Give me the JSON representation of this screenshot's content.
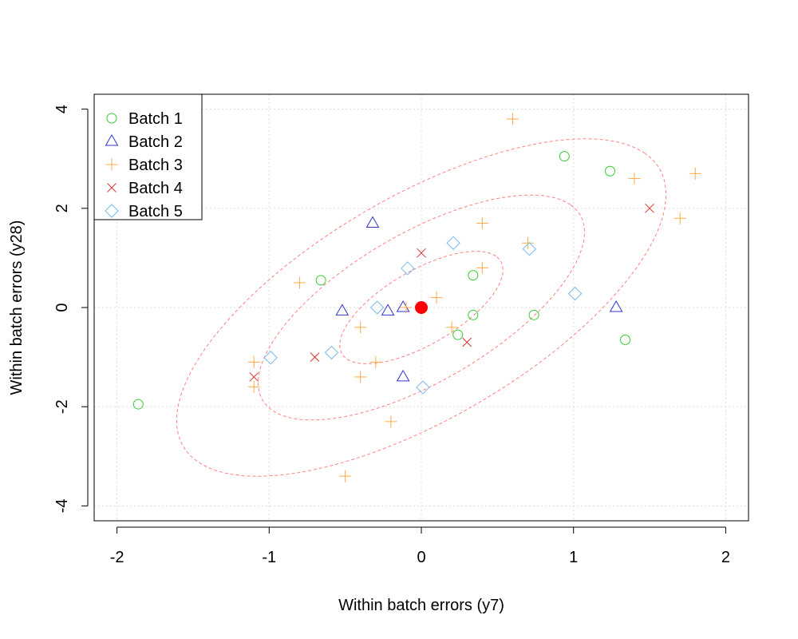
{
  "chart_data": {
    "type": "scatter",
    "title": "",
    "xlabel": "Within batch errors (y7)",
    "ylabel": "Within batch errors (y28)",
    "xlim": [
      -2.15,
      2.15
    ],
    "ylim": [
      -4.3,
      4.3
    ],
    "xticks": [
      -2,
      -1,
      0,
      1,
      2
    ],
    "xtick_labels": [
      "-2",
      "-1",
      "0",
      "1",
      "2"
    ],
    "yticks": [
      -4,
      -2,
      0,
      2,
      4
    ],
    "ytick_labels": [
      "-4",
      "-2",
      "0",
      "2",
      "4"
    ],
    "grid": true,
    "legend_position": "top-left",
    "center_point": {
      "x": 0,
      "y": 0,
      "color": "#ff0000"
    },
    "ellipses": [
      {
        "cx": 0,
        "cy": 0,
        "sdx": 0.536,
        "sdy": 1.134,
        "r": 0.67,
        "k": 1.0
      },
      {
        "cx": 0,
        "cy": 0,
        "sdx": 0.536,
        "sdy": 1.134,
        "r": 0.67,
        "k": 2.0
      },
      {
        "cx": 0,
        "cy": 0,
        "sdx": 0.536,
        "sdy": 1.134,
        "r": 0.67,
        "k": 3.0
      }
    ],
    "series": [
      {
        "name": "Batch 1",
        "marker": "circle",
        "color": "#33cc33",
        "points": [
          [
            0.94,
            3.05
          ],
          [
            1.24,
            2.75
          ],
          [
            -0.66,
            0.55
          ],
          [
            0.34,
            0.65
          ],
          [
            0.34,
            -0.15
          ],
          [
            0.74,
            -0.15
          ],
          [
            0.24,
            -0.55
          ],
          [
            1.34,
            -0.65
          ],
          [
            -1.86,
            -1.95
          ]
        ]
      },
      {
        "name": "Batch 2",
        "marker": "triangle",
        "color": "#3333cc",
        "points": [
          [
            -0.32,
            1.7
          ],
          [
            -0.12,
            0.0
          ],
          [
            -0.22,
            -0.07
          ],
          [
            -0.52,
            -0.07
          ],
          [
            1.28,
            0.0
          ],
          [
            -0.12,
            -1.4
          ]
        ]
      },
      {
        "name": "Batch 3",
        "marker": "plus",
        "color": "#ffaa44",
        "points": [
          [
            0.6,
            3.8
          ],
          [
            1.4,
            2.6
          ],
          [
            1.8,
            2.7
          ],
          [
            1.7,
            1.8
          ],
          [
            0.4,
            1.7
          ],
          [
            0.7,
            1.3
          ],
          [
            0.4,
            0.8
          ],
          [
            -0.8,
            0.5
          ],
          [
            0.1,
            0.2
          ],
          [
            -0.1,
            0.0
          ],
          [
            -0.4,
            -0.4
          ],
          [
            0.2,
            -0.4
          ],
          [
            -0.3,
            -1.1
          ],
          [
            -1.1,
            -1.1
          ],
          [
            -0.4,
            -1.4
          ],
          [
            -1.1,
            -1.6
          ],
          [
            -0.2,
            -2.3
          ],
          [
            -0.5,
            -3.4
          ]
        ]
      },
      {
        "name": "Batch 4",
        "marker": "cross",
        "color": "#dd3333",
        "points": [
          [
            1.5,
            2.0
          ],
          [
            0.0,
            1.1
          ],
          [
            -0.7,
            -1.0
          ],
          [
            0.3,
            -0.7
          ],
          [
            -1.1,
            -1.4
          ]
        ]
      },
      {
        "name": "Batch 5",
        "marker": "diamond",
        "color": "#77bbee",
        "points": [
          [
            0.21,
            1.3
          ],
          [
            0.71,
            1.18
          ],
          [
            -0.09,
            0.79
          ],
          [
            -0.29,
            0.0
          ],
          [
            1.01,
            0.28
          ],
          [
            -0.59,
            -0.91
          ],
          [
            -0.99,
            -1.01
          ],
          [
            0.01,
            -1.61
          ]
        ]
      }
    ]
  }
}
